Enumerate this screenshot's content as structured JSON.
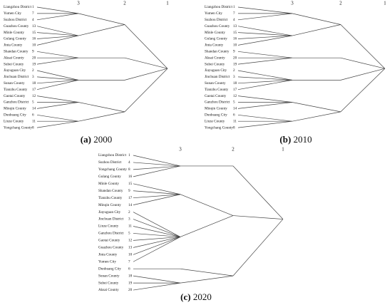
{
  "panels": [
    {
      "caption_letter": "(a)",
      "caption_year": "2000",
      "levels": [
        "3",
        "2",
        "1"
      ],
      "leaves": [
        {
          "label": "Liangzhou District",
          "id": "1"
        },
        {
          "label": "Yumen City",
          "id": "7"
        },
        {
          "label": "Suzhou District",
          "id": "4"
        },
        {
          "label": "Guazhou County",
          "id": "13"
        },
        {
          "label": "Minle County",
          "id": "15"
        },
        {
          "label": "Gulang County",
          "id": "16"
        },
        {
          "label": "Jinta County",
          "id": "10"
        },
        {
          "label": "Shandan County",
          "id": "9"
        },
        {
          "label": "Aksai County",
          "id": "20"
        },
        {
          "label": "Subei County",
          "id": "19"
        },
        {
          "label": "Jiayuguan City",
          "id": "2"
        },
        {
          "label": "Jinchuan District",
          "id": "3"
        },
        {
          "label": "Sunan County",
          "id": "18"
        },
        {
          "label": "Tianzhu County",
          "id": "17"
        },
        {
          "label": "Gaotai County",
          "id": "12"
        },
        {
          "label": "Ganzhou District",
          "id": "5"
        },
        {
          "label": "Minqin County",
          "id": "14"
        },
        {
          "label": "Dunhuang City",
          "id": "6"
        },
        {
          "label": "Linze County",
          "id": "11"
        },
        {
          "label": "Yongchang County",
          "id": "8"
        }
      ]
    },
    {
      "caption_letter": "(b)",
      "caption_year": "2010",
      "levels": [
        "3",
        "2",
        "1"
      ],
      "leaves": [
        {
          "label": "Liangzhou District",
          "id": "1"
        },
        {
          "label": "Yumen City",
          "id": "7"
        },
        {
          "label": "Suzhou District",
          "id": "4"
        },
        {
          "label": "Guazhou County",
          "id": "13"
        },
        {
          "label": "Minle County",
          "id": "15"
        },
        {
          "label": "Gulang County",
          "id": "16"
        },
        {
          "label": "Jinta County",
          "id": "10"
        },
        {
          "label": "Shandan County",
          "id": "9"
        },
        {
          "label": "Aksai County",
          "id": "20"
        },
        {
          "label": "Subei County",
          "id": "19"
        },
        {
          "label": "Jiayuguan City",
          "id": "2"
        },
        {
          "label": "Jinchuan District",
          "id": "3"
        },
        {
          "label": "Sunan County",
          "id": "18"
        },
        {
          "label": "Tianzhu County",
          "id": "17"
        },
        {
          "label": "Gaotai County",
          "id": "12"
        },
        {
          "label": "Ganzhou District",
          "id": "5"
        },
        {
          "label": "Minqin County",
          "id": "14"
        },
        {
          "label": "Dunhuang City",
          "id": "6"
        },
        {
          "label": "Linze County",
          "id": "11"
        },
        {
          "label": "Yongchang County",
          "id": "8"
        }
      ]
    },
    {
      "caption_letter": "(c)",
      "caption_year": "2020",
      "levels": [
        "3",
        "2",
        "1"
      ],
      "leaves": [
        {
          "label": "Liangzhou District",
          "id": "1"
        },
        {
          "label": "Suzhou District",
          "id": "4"
        },
        {
          "label": "Yongchang County",
          "id": "8"
        },
        {
          "label": "Gulang County",
          "id": "16"
        },
        {
          "label": "Minle County",
          "id": "15"
        },
        {
          "label": "Shandan County",
          "id": "9"
        },
        {
          "label": "Tianzhu County",
          "id": "17"
        },
        {
          "label": "Minqin County",
          "id": "14"
        },
        {
          "label": "Jiayuguan City",
          "id": "2"
        },
        {
          "label": "Jinchuan District",
          "id": "3"
        },
        {
          "label": "Linze County",
          "id": "11"
        },
        {
          "label": "Ganzhou District",
          "id": "5"
        },
        {
          "label": "Gaotai County",
          "id": "12"
        },
        {
          "label": "Guazhou County",
          "id": "13"
        },
        {
          "label": "Jinta County",
          "id": "10"
        },
        {
          "label": "Yumen City",
          "id": "7"
        },
        {
          "label": "Dunhuang City",
          "id": "6"
        },
        {
          "label": "Sunan County",
          "id": "18"
        },
        {
          "label": "Subei County",
          "id": "19"
        },
        {
          "label": "Aksai County",
          "id": "20"
        }
      ]
    }
  ]
}
